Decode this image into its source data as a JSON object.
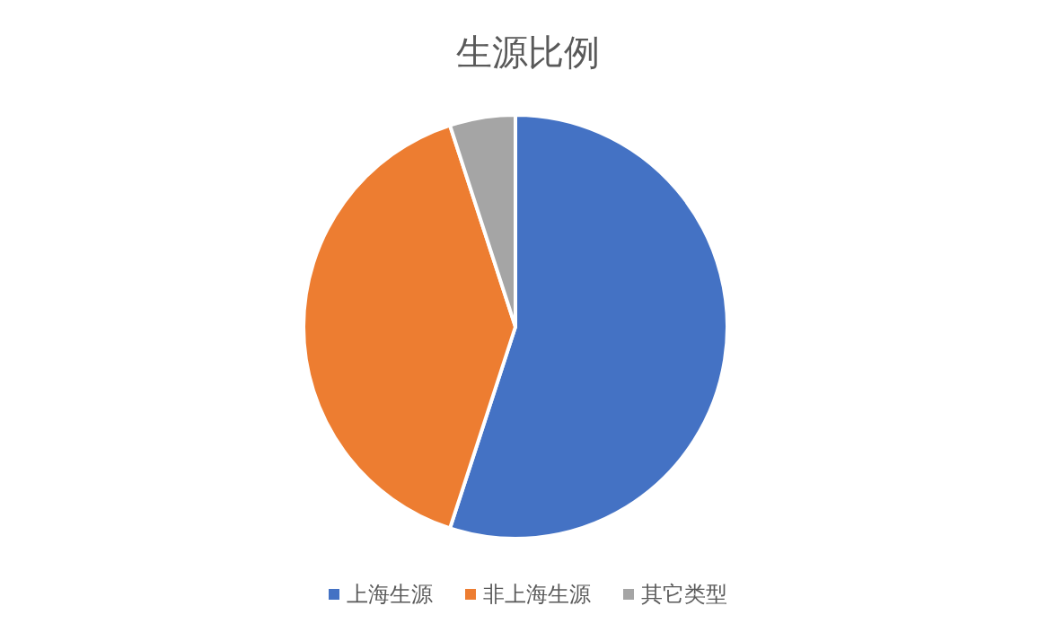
{
  "chart_data": {
    "type": "pie",
    "title": "生源比例",
    "categories": [
      "上海生源",
      "非上海生源",
      "其它类型"
    ],
    "values": [
      55,
      40,
      5
    ],
    "colors": [
      "#4472c4",
      "#ed7d31",
      "#a5a5a5"
    ],
    "legend": "bottom"
  }
}
